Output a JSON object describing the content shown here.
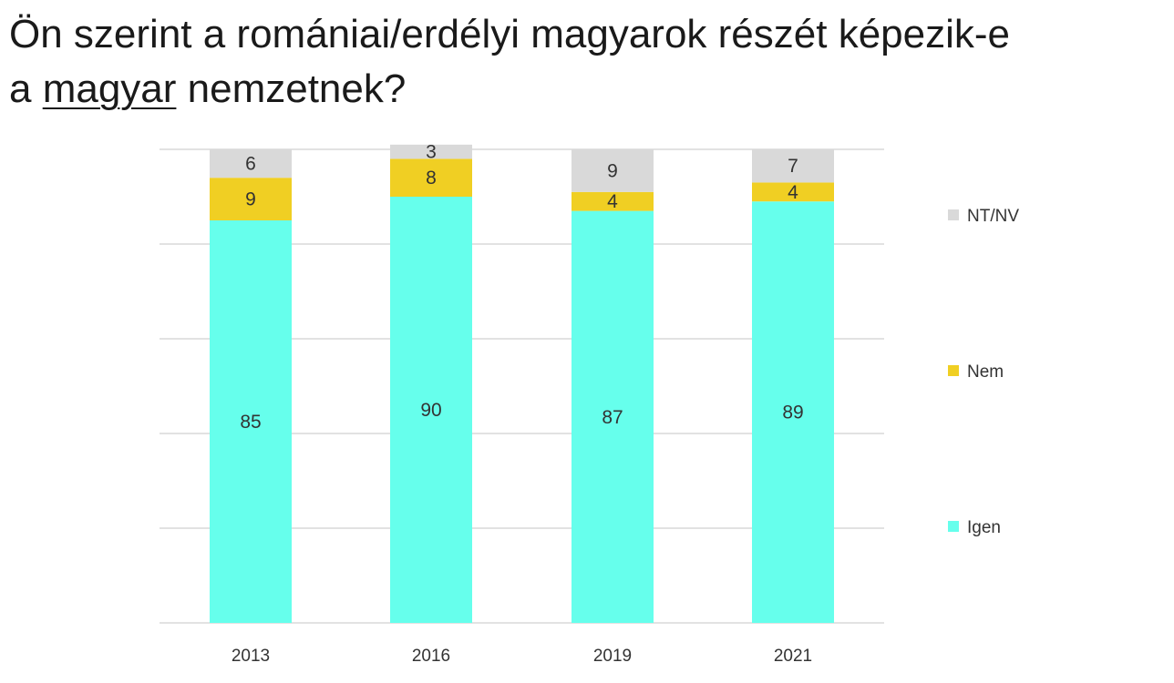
{
  "title": {
    "line1": "Ön szerint a romániai/erdélyi magyarok részét képezik-e",
    "line2_pre": "a ",
    "line2_underlined": "magyar",
    "line2_post": " nemzetnek?"
  },
  "chart_data": {
    "type": "bar",
    "stacked": true,
    "categories": [
      "2013",
      "2016",
      "2019",
      "2021"
    ],
    "series": [
      {
        "name": "Igen",
        "values": [
          85,
          90,
          87,
          89
        ],
        "color": "#66ffec"
      },
      {
        "name": "Nem",
        "values": [
          9,
          8,
          4,
          4
        ],
        "color": "#f0cf23"
      },
      {
        "name": "NT/NV",
        "values": [
          6,
          3,
          9,
          7
        ],
        "color": "#d9d9d9"
      }
    ],
    "ylim": [
      0,
      100
    ],
    "grid": true,
    "legend_position": "right",
    "legend_order": [
      "NT/NV",
      "Nem",
      "Igen"
    ],
    "title": "Ön szerint a romániai/erdélyi magyarok részét képezik-e a magyar nemzetnek?",
    "xlabel": "",
    "ylabel": ""
  }
}
